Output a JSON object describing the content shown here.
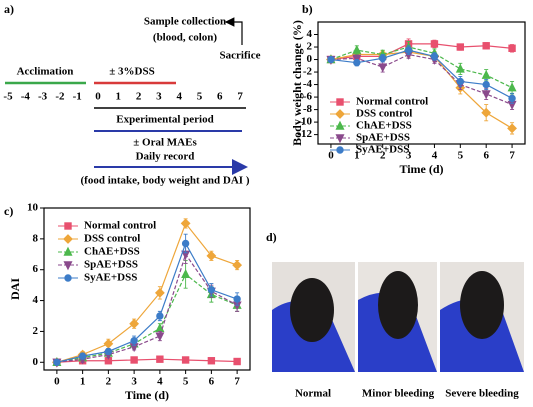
{
  "panel_labels": [
    "a)",
    "b)",
    "c)",
    "d)"
  ],
  "timeline": {
    "sample_collection": "Sample collection",
    "sample_detail": "(blood, colon)",
    "sacrifice": "Sacrifice",
    "acclimation": "Acclimation",
    "dss": "± 3%DSS",
    "days": [
      -5,
      -4,
      -3,
      -2,
      -1,
      0,
      1,
      2,
      3,
      4,
      5,
      6,
      7
    ],
    "period": "Experimental period",
    "treatment": "± Oral MAEs",
    "record": "Daily record",
    "record_detail": "(food intake, body weight and DAI )"
  },
  "chart_data": [
    {
      "type": "line",
      "x_label": "Time (d)",
      "y_label": "Body weight change (%)",
      "x": [
        0,
        1,
        2,
        3,
        4,
        5,
        6,
        7
      ],
      "xlim": [
        -0.5,
        7.5
      ],
      "xticks": [
        0,
        1,
        2,
        3,
        4,
        5,
        6,
        7
      ],
      "ylim": [
        -13.5,
        6
      ],
      "yticks": [
        4,
        2,
        0,
        -2,
        -4,
        -6,
        -8,
        -10,
        -12
      ],
      "legend": "lower left",
      "series": [
        {
          "name": "Normal control",
          "color": "#e8506e",
          "marker": "square",
          "dashed": false,
          "values": [
            0,
            0.5,
            0.5,
            2.5,
            2.5,
            2,
            2.2,
            1.8
          ],
          "errors": [
            0,
            0.4,
            0.5,
            0.8,
            0.6,
            0.5,
            0.5,
            0.6
          ]
        },
        {
          "name": "DSS control",
          "color": "#eea63a",
          "marker": "diamond",
          "dashed": false,
          "values": [
            0,
            0.8,
            0.8,
            1.2,
            0.5,
            -4.5,
            -8.5,
            -11
          ],
          "errors": [
            0,
            0.5,
            0.6,
            0.8,
            0.8,
            1,
            1.3,
            0.9
          ]
        },
        {
          "name": "ChAE+DSS",
          "color": "#4cb84c",
          "marker": "triangle",
          "dashed": true,
          "values": [
            0,
            1.5,
            0.8,
            2,
            1,
            -1.5,
            -2.5,
            -4.5
          ],
          "errors": [
            0,
            0.7,
            0.7,
            0.9,
            0.7,
            0.9,
            0.9,
            1
          ]
        },
        {
          "name": "SpAE+DSS",
          "color": "#8a4a8c",
          "marker": "down-triangle",
          "dashed": true,
          "values": [
            0,
            0.2,
            -1.2,
            0.8,
            0,
            -4,
            -5.5,
            -7.2
          ],
          "errors": [
            0,
            0.5,
            0.8,
            0.6,
            0.6,
            0.8,
            0.9,
            0.8
          ]
        },
        {
          "name": "SyAE+DSS",
          "color": "#3c7cc8",
          "marker": "circle",
          "dashed": false,
          "values": [
            0,
            -0.5,
            0.2,
            1.5,
            0.5,
            -3.5,
            -4,
            -6.2
          ],
          "errors": [
            0,
            0.5,
            0.6,
            0.7,
            0.6,
            0.8,
            0.8,
            0.8
          ]
        }
      ]
    },
    {
      "type": "line",
      "x_label": "Time (d)",
      "y_label": "DAI",
      "x": [
        0,
        1,
        2,
        3,
        4,
        5,
        6,
        7
      ],
      "xlim": [
        -0.5,
        7.5
      ],
      "xticks": [
        0,
        1,
        2,
        3,
        4,
        5,
        6,
        7
      ],
      "ylim": [
        -0.5,
        10
      ],
      "yticks": [
        0,
        2,
        4,
        6,
        8,
        10
      ],
      "legend": "upper left",
      "series": [
        {
          "name": "Normal control",
          "color": "#e8506e",
          "marker": "square",
          "dashed": false,
          "values": [
            0,
            0.1,
            0.1,
            0.15,
            0.2,
            0.15,
            0.1,
            0.05
          ],
          "errors": [
            0,
            0,
            0,
            0,
            0,
            0,
            0,
            0
          ]
        },
        {
          "name": "DSS control",
          "color": "#eea63a",
          "marker": "diamond",
          "dashed": false,
          "values": [
            0,
            0.5,
            1.2,
            2.5,
            4.5,
            9,
            6.9,
            6.3
          ],
          "errors": [
            0,
            0.2,
            0.3,
            0.3,
            0.4,
            0.3,
            0.3,
            0.3
          ]
        },
        {
          "name": "ChAE+DSS",
          "color": "#4cb84c",
          "marker": "triangle",
          "dashed": true,
          "values": [
            0,
            0.3,
            0.6,
            1.2,
            2.2,
            5.7,
            4.4,
            3.7
          ],
          "errors": [
            0,
            0.2,
            0.2,
            0.3,
            0.3,
            0.9,
            0.5,
            0.4
          ]
        },
        {
          "name": "SpAE+DSS",
          "color": "#8a4a8c",
          "marker": "down-triangle",
          "dashed": true,
          "values": [
            0,
            0.2,
            0.5,
            1,
            1.7,
            7,
            4.6,
            3.7
          ],
          "errors": [
            0,
            0.2,
            0.2,
            0.2,
            0.3,
            0.6,
            0.4,
            0.4
          ]
        },
        {
          "name": "SyAE+DSS",
          "color": "#3c7cc8",
          "marker": "circle",
          "dashed": false,
          "values": [
            0,
            0.4,
            0.7,
            1.4,
            3,
            7.7,
            4.7,
            4.1
          ],
          "errors": [
            0,
            0.2,
            0.2,
            0.3,
            0.3,
            0.6,
            0.4,
            0.4
          ]
        }
      ]
    }
  ],
  "photos": [
    "Normal",
    "Minor bleeding",
    "Severe bleeding"
  ]
}
